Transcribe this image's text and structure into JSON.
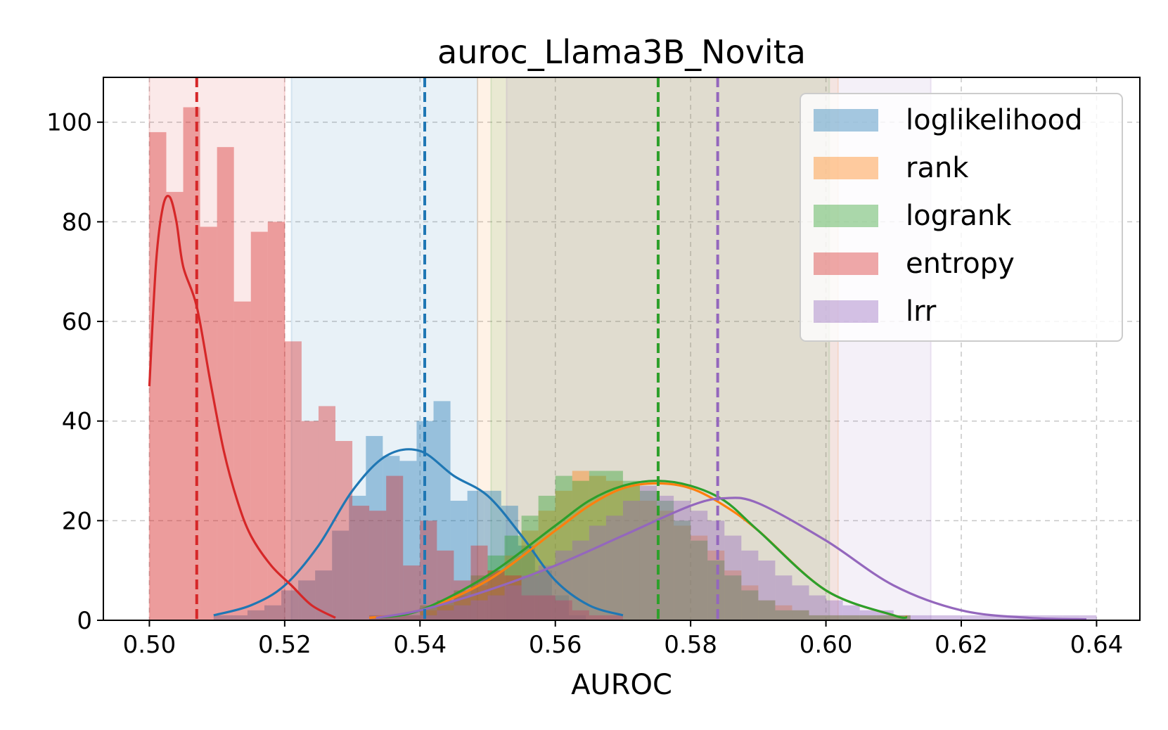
{
  "chart_data": {
    "type": "histogram",
    "title": "auroc_Llama3B_Novita",
    "xlabel": "AUROC",
    "ylabel": "",
    "xlim": [
      0.4932,
      0.6464
    ],
    "ylim": [
      0,
      109
    ],
    "xticks": [
      0.5,
      0.52,
      0.54,
      0.56,
      0.58,
      0.6,
      0.62,
      0.64
    ],
    "xtick_labels": [
      "0.50",
      "0.52",
      "0.54",
      "0.56",
      "0.58",
      "0.60",
      "0.62",
      "0.64"
    ],
    "yticks": [
      0,
      20,
      40,
      60,
      80,
      100
    ],
    "ytick_labels": [
      "0",
      "20",
      "40",
      "60",
      "80",
      "100"
    ],
    "grid": true,
    "legend_position": "top-right",
    "bin_width": 0.0025,
    "series": [
      {
        "name": "loglikelihood",
        "color": "#1f77b4",
        "mean": 0.5407,
        "ci": [
          0.521,
          0.5485
        ],
        "hist_start": 0.5095,
        "counts": [
          1,
          1,
          2,
          3,
          6,
          8,
          10,
          18,
          25,
          37,
          33,
          32,
          40,
          44,
          24,
          26,
          26,
          23,
          15,
          10,
          5,
          1
        ],
        "kde_x": [
          0.5095,
          0.515,
          0.52,
          0.525,
          0.53,
          0.535,
          0.54,
          0.545,
          0.55,
          0.555,
          0.56,
          0.565,
          0.57
        ],
        "kde_y": [
          1,
          3,
          7,
          15,
          26,
          33,
          34,
          29,
          25,
          17,
          8,
          3,
          1
        ]
      },
      {
        "name": "rank",
        "color": "#ff7f0e",
        "mean": 0.5752,
        "ci": [
          0.5485,
          0.6018
        ],
        "hist_start": 0.5325,
        "counts": [
          1,
          1,
          1,
          2,
          3,
          5,
          7,
          10,
          13,
          18,
          22,
          26,
          30,
          29,
          28,
          27,
          24,
          22,
          19,
          17,
          14,
          10,
          7,
          4,
          3,
          2,
          1,
          1,
          1,
          1,
          1,
          1
        ],
        "kde_x": [
          0.5325,
          0.54,
          0.55,
          0.56,
          0.565,
          0.57,
          0.575,
          0.58,
          0.585,
          0.59,
          0.6,
          0.61,
          0.612
        ],
        "kde_y": [
          0.5,
          2,
          8,
          18,
          23,
          26.5,
          27.5,
          26.5,
          23,
          18,
          6,
          1,
          0.7
        ]
      },
      {
        "name": "logrank",
        "color": "#2ca02c",
        "mean": 0.5752,
        "ci": [
          0.5505,
          0.6005
        ],
        "hist_start": 0.5325,
        "counts": [
          1,
          1,
          1,
          3,
          4,
          6,
          9,
          13,
          17,
          21,
          25,
          29,
          28,
          30,
          30,
          28,
          26,
          24,
          20,
          16,
          12,
          9,
          6,
          4,
          2,
          2,
          1,
          1,
          1,
          1,
          1,
          1
        ],
        "kde_x": [
          0.5335,
          0.54,
          0.55,
          0.56,
          0.565,
          0.57,
          0.575,
          0.58,
          0.585,
          0.59,
          0.6,
          0.61,
          0.612
        ],
        "kde_y": [
          0.5,
          2,
          9,
          19,
          24,
          27,
          28,
          27,
          24,
          18,
          6,
          1,
          0.6
        ]
      },
      {
        "name": "entropy",
        "color": "#d62728",
        "mean": 0.507,
        "ci": [
          0.5,
          0.52
        ],
        "hist_start": 0.5,
        "counts": [
          98,
          86,
          103,
          79,
          95,
          64,
          78,
          80,
          56,
          40,
          43,
          36,
          23,
          22,
          29,
          11,
          20,
          14,
          8,
          15,
          10,
          9,
          5,
          5,
          4,
          2,
          1,
          1
        ],
        "kde_x": [
          0.5,
          0.501,
          0.502,
          0.503,
          0.504,
          0.505,
          0.507,
          0.509,
          0.511,
          0.513,
          0.515,
          0.518,
          0.521,
          0.524,
          0.5275
        ],
        "kde_y": [
          47,
          72,
          83,
          85,
          80,
          71,
          63,
          48,
          34,
          24,
          17,
          11,
          7,
          3,
          0.5
        ]
      },
      {
        "name": "lrr",
        "color": "#9467bd",
        "mean": 0.584,
        "ci": [
          0.5528,
          0.6155
        ],
        "hist_start": 0.5325,
        "counts": [
          1,
          1,
          1,
          1,
          2,
          3,
          4,
          5,
          7,
          9,
          11,
          14,
          16,
          19,
          21,
          24,
          27,
          25,
          24,
          22,
          20,
          17,
          14,
          12,
          9,
          7,
          5,
          4,
          3,
          2,
          2,
          1,
          1,
          1,
          1,
          1,
          1,
          1,
          1,
          1,
          1,
          1,
          1
        ],
        "kde_x": [
          0.5335,
          0.54,
          0.55,
          0.56,
          0.57,
          0.58,
          0.585,
          0.59,
          0.6,
          0.61,
          0.62,
          0.63,
          0.6385
        ],
        "kde_y": [
          0.5,
          2,
          6,
          11,
          17,
          23,
          24.5,
          23.5,
          16,
          7,
          2,
          0.5,
          0.2
        ]
      }
    ]
  }
}
